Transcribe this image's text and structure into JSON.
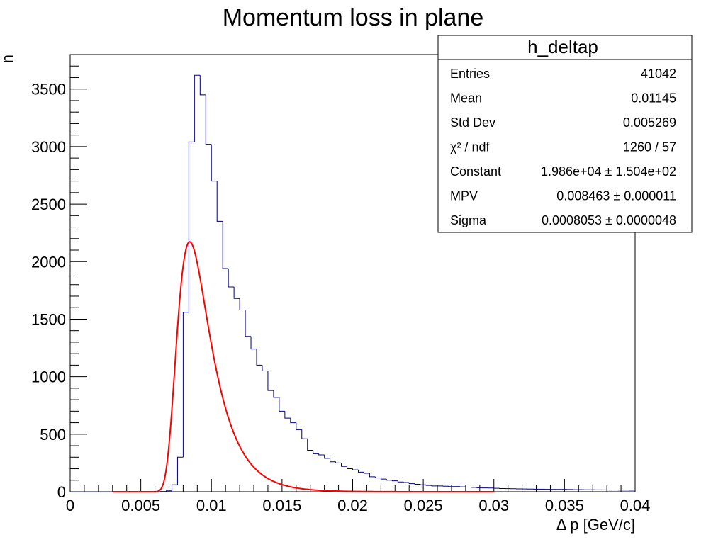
{
  "chart_data": {
    "type": "bar",
    "title": "Momentum loss in plane",
    "xlabel": "Δ p [GeV/c]",
    "ylabel": "n",
    "xlim": [
      0,
      0.04
    ],
    "ylim": [
      0,
      3800
    ],
    "x_ticks": [
      "0",
      "0.005",
      "0.01",
      "0.015",
      "0.02",
      "0.025",
      "0.03",
      "0.035",
      "0.04"
    ],
    "y_ticks": [
      "0",
      "500",
      "1000",
      "1500",
      "2000",
      "2500",
      "3000",
      "3500"
    ],
    "grid": false,
    "histogram": {
      "name": "h_deltap",
      "color": "#000080",
      "bin_width": 0.0004,
      "start": 0.0,
      "counts": [
        0,
        0,
        0,
        0,
        0,
        0,
        0,
        0,
        0,
        0,
        0,
        0,
        0,
        0,
        0,
        0,
        2,
        8,
        60,
        300,
        1560,
        3040,
        3620,
        3450,
        3020,
        2700,
        2350,
        1940,
        1780,
        1680,
        1580,
        1350,
        1240,
        1100,
        1050,
        880,
        820,
        700,
        640,
        600,
        540,
        460,
        360,
        330,
        320,
        290,
        260,
        250,
        220,
        200,
        190,
        170,
        160,
        130,
        120,
        110,
        100,
        95,
        85,
        80,
        70,
        65,
        60,
        55,
        50,
        50,
        48,
        45,
        45,
        42,
        40,
        38,
        35,
        33,
        32,
        30,
        28,
        27,
        26,
        25,
        24,
        23,
        22,
        22,
        21,
        20,
        20,
        20,
        19,
        18,
        18,
        17,
        17,
        16,
        16,
        15,
        15,
        14,
        14,
        13
      ]
    },
    "fit": {
      "name": "landau",
      "color": "#ff0000",
      "x_range": [
        0.003,
        0.03
      ],
      "constant": 19860,
      "mpv": 0.008463,
      "sigma": 0.0008053
    },
    "stats_box": {
      "title": "h_deltap",
      "rows": [
        {
          "label": "Entries",
          "value": "41042"
        },
        {
          "label": "Mean",
          "value": "0.01145"
        },
        {
          "label": "Std Dev",
          "value": "0.005269"
        },
        {
          "label": "χ² / ndf",
          "value": "1260 / 57"
        },
        {
          "label": "Constant",
          "value": "1.986e+04  ± 1.504e+02"
        },
        {
          "label": "MPV",
          "value": "0.008463  ± 0.000011"
        },
        {
          "label": "Sigma",
          "value": "0.0008053  ± 0.0000048"
        }
      ]
    },
    "legend_position": "top-right"
  }
}
